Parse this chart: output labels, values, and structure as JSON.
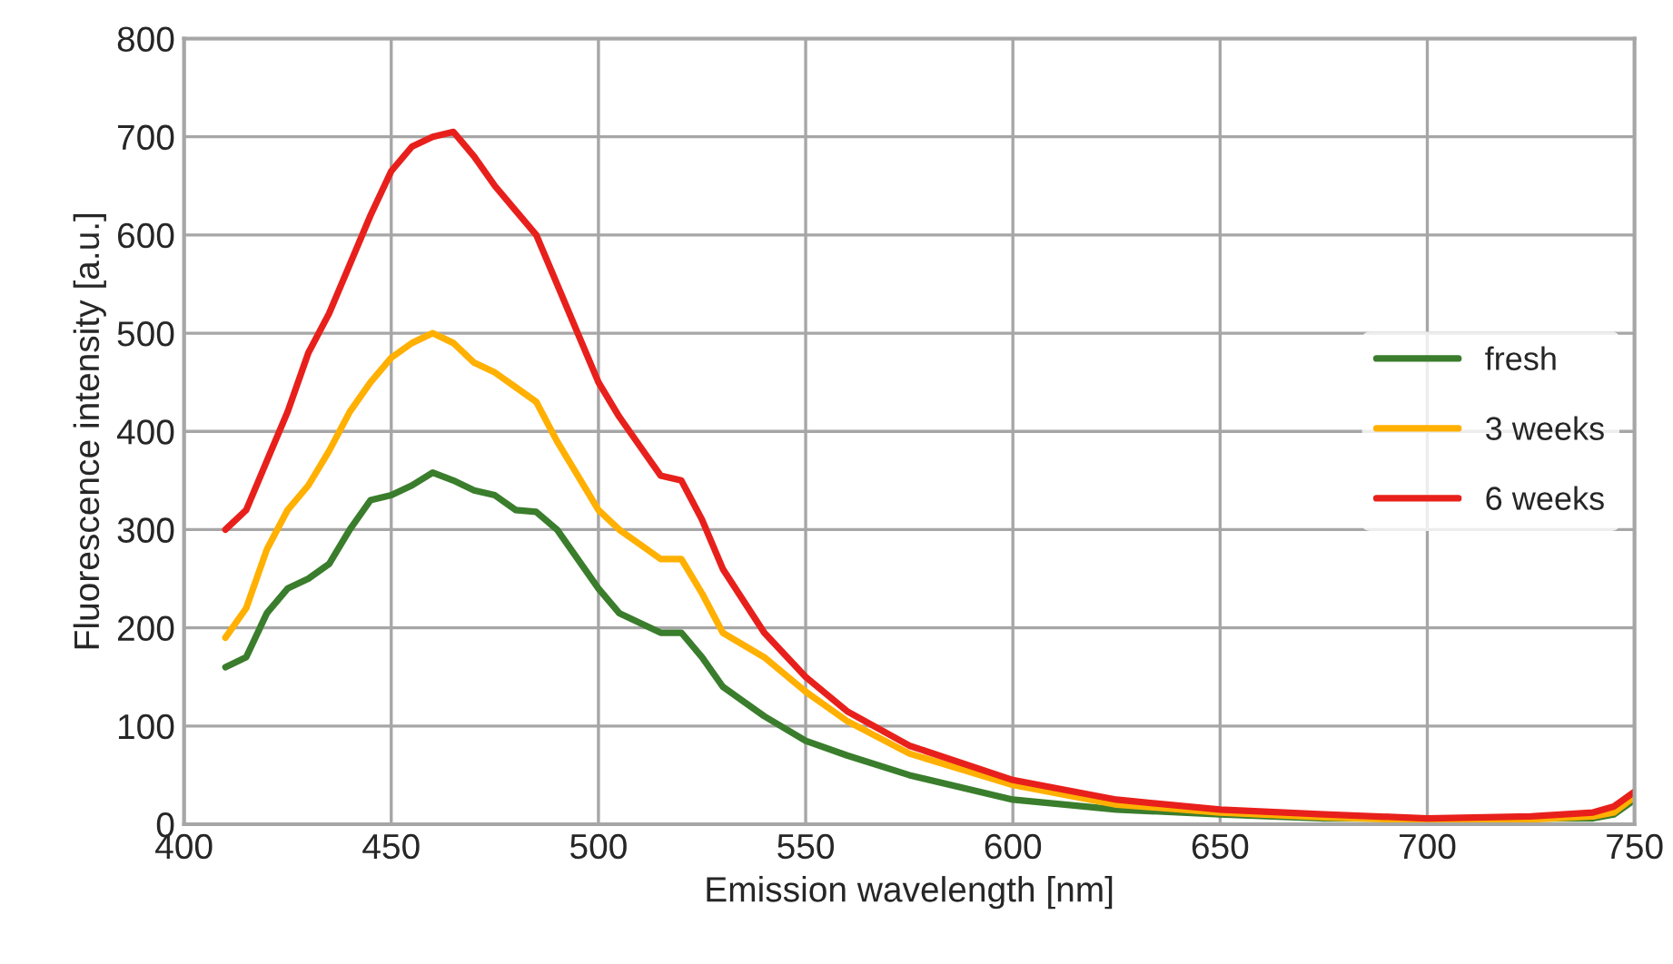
{
  "chart_data": {
    "type": "line",
    "xlabel": "Emission wavelength [nm]",
    "ylabel": "Fluorescence intensity [a.u.]",
    "x": [
      410,
      415,
      420,
      425,
      430,
      435,
      440,
      445,
      450,
      455,
      460,
      465,
      470,
      475,
      480,
      485,
      490,
      495,
      500,
      505,
      510,
      515,
      520,
      525,
      530,
      540,
      550,
      560,
      575,
      600,
      625,
      650,
      675,
      700,
      725,
      740,
      745,
      750
    ],
    "series": [
      {
        "name": "fresh",
        "color": "#3a7d2c",
        "values": [
          160,
          170,
          215,
          240,
          250,
          265,
          300,
          330,
          335,
          345,
          358,
          350,
          340,
          335,
          320,
          318,
          300,
          270,
          240,
          215,
          205,
          195,
          195,
          170,
          140,
          110,
          85,
          70,
          50,
          25,
          15,
          10,
          6,
          null,
          null,
          6,
          10,
          25
        ]
      },
      {
        "name": "3 weeks",
        "color": "#ffb000",
        "values": [
          190,
          220,
          280,
          320,
          345,
          380,
          420,
          450,
          475,
          490,
          500,
          490,
          470,
          460,
          445,
          430,
          390,
          355,
          320,
          300,
          285,
          270,
          270,
          235,
          195,
          170,
          135,
          105,
          72,
          40,
          20,
          12,
          7,
          4,
          5,
          8,
          12,
          28
        ]
      },
      {
        "name": "6 weeks",
        "color": "#e8201c",
        "values": [
          300,
          320,
          370,
          420,
          480,
          520,
          570,
          620,
          665,
          690,
          700,
          705,
          680,
          650,
          625,
          600,
          550,
          500,
          450,
          415,
          385,
          355,
          350,
          310,
          260,
          195,
          150,
          115,
          80,
          45,
          25,
          15,
          10,
          6,
          8,
          12,
          18,
          33
        ]
      }
    ],
    "xlim": [
      400,
      750
    ],
    "xticks": [
      400,
      450,
      500,
      550,
      600,
      650,
      700,
      750
    ],
    "ylim": [
      0,
      800
    ],
    "yticks": [
      0,
      100,
      200,
      300,
      400,
      500,
      600,
      700,
      800
    ],
    "grid": true,
    "legend": "center right",
    "marker": "none",
    "line_style": "solid"
  }
}
